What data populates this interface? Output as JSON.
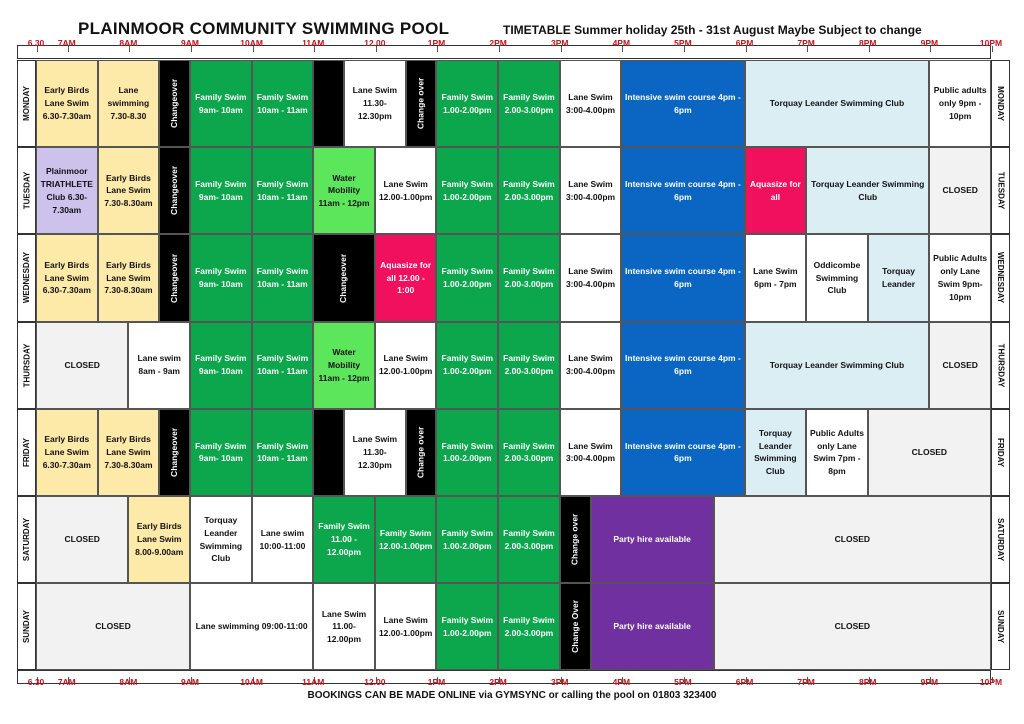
{
  "header": {
    "title": "PLAINMOOR COMMUNITY SWIMMING POOL",
    "subtitle": "TIMETABLE Summer holiday 25th - 31st  August  Maybe Subject to change"
  },
  "footer": "BOOKINGS CAN BE MADE ONLINE via GYMSYNC or calling the pool on 01803 323400",
  "time_labels": [
    {
      "t": 6.5,
      "label": "6.30"
    },
    {
      "t": 7,
      "label": "7AM"
    },
    {
      "t": 8,
      "label": "8AM"
    },
    {
      "t": 9,
      "label": "9AM"
    },
    {
      "t": 10,
      "label": "10AM"
    },
    {
      "t": 11,
      "label": "11AM"
    },
    {
      "t": 12,
      "label": "12.00"
    },
    {
      "t": 13,
      "label": "1PM"
    },
    {
      "t": 14,
      "label": "2PM"
    },
    {
      "t": 15,
      "label": "3PM"
    },
    {
      "t": 16,
      "label": "4PM"
    },
    {
      "t": 17,
      "label": "5PM"
    },
    {
      "t": 18,
      "label": "6PM"
    },
    {
      "t": 19,
      "label": "7PM"
    },
    {
      "t": 20,
      "label": "8PM"
    },
    {
      "t": 21,
      "label": "9PM"
    },
    {
      "t": 22,
      "label": "10PM"
    }
  ],
  "colors": {
    "yellow": "#fde9a8",
    "lavender": "#ccc2ec",
    "green": "#0ca74c",
    "black": "#000000",
    "white": "#ffffff",
    "blue": "#0b66c3",
    "lightblue": "#dbeef4",
    "lightgreen": "#5ce65c",
    "pink": "#f0105e",
    "purple": "#7030a0",
    "grey": "#f2f2f2"
  },
  "days": [
    {
      "name": "MONDAY",
      "sessions": [
        {
          "start": 6.5,
          "end": 7.5,
          "color": "yellow",
          "text": "Early Birds Lane Swim 6.30-7.30am"
        },
        {
          "start": 7.5,
          "end": 8.5,
          "color": "yellow",
          "text": "Lane swimming 7.30-8.30"
        },
        {
          "start": 8.5,
          "end": 9,
          "color": "black",
          "text": "Changeover",
          "vertical": true
        },
        {
          "start": 9,
          "end": 10,
          "color": "green",
          "text": "Family Swim 9am- 10am"
        },
        {
          "start": 10,
          "end": 11,
          "color": "green",
          "text": "Family Swim 10am - 11am"
        },
        {
          "start": 11,
          "end": 11.5,
          "color": "black",
          "text": ""
        },
        {
          "start": 11.5,
          "end": 12.5,
          "color": "white",
          "text": "Lane Swim 11.30-12.30pm"
        },
        {
          "start": 12.5,
          "end": 13,
          "color": "black",
          "text": "Change over",
          "vertical": true
        },
        {
          "start": 13,
          "end": 14,
          "color": "green",
          "text": "Family Swim 1.00-2.00pm"
        },
        {
          "start": 14,
          "end": 15,
          "color": "green",
          "text": "Family Swim 2.00-3.00pm"
        },
        {
          "start": 15,
          "end": 16,
          "color": "white",
          "text": "Lane Swim 3:00-4.00pm"
        },
        {
          "start": 16,
          "end": 18,
          "color": "blue",
          "text": "Intensive swim course 4pm - 6pm"
        },
        {
          "start": 18,
          "end": 21,
          "color": "lightblue",
          "text": "Torquay Leander Swimming Club"
        },
        {
          "start": 21,
          "end": 22,
          "color": "white",
          "text": "Public adults only 9pm - 10pm"
        }
      ]
    },
    {
      "name": "TUESDAY",
      "sessions": [
        {
          "start": 6.5,
          "end": 7.5,
          "color": "lavender",
          "text": "Plainmoor TRIATHLETE Club 6.30-7.30am"
        },
        {
          "start": 7.5,
          "end": 8.5,
          "color": "yellow",
          "text": "Early Birds Lane Swim 7.30-8.30am"
        },
        {
          "start": 8.5,
          "end": 9,
          "color": "black",
          "text": "Changeover",
          "vertical": true
        },
        {
          "start": 9,
          "end": 10,
          "color": "green",
          "text": "Family Swim 9am- 10am"
        },
        {
          "start": 10,
          "end": 11,
          "color": "green",
          "text": "Family Swim 10am - 11am"
        },
        {
          "start": 11,
          "end": 12,
          "color": "lightgreen",
          "text": "Water Mobility 11am - 12pm"
        },
        {
          "start": 12,
          "end": 13,
          "color": "white",
          "text": "Lane Swim 12.00-1.00pm"
        },
        {
          "start": 13,
          "end": 14,
          "color": "green",
          "text": "Family Swim 1.00-2.00pm"
        },
        {
          "start": 14,
          "end": 15,
          "color": "green",
          "text": "Family Swim 2.00-3.00pm"
        },
        {
          "start": 15,
          "end": 16,
          "color": "white",
          "text": "Lane Swim 3:00-4.00pm"
        },
        {
          "start": 16,
          "end": 18,
          "color": "blue",
          "text": "Intensive swim course 4pm - 6pm"
        },
        {
          "start": 18,
          "end": 19,
          "color": "pink",
          "text": "Aquasize for all"
        },
        {
          "start": 19,
          "end": 21,
          "color": "lightblue",
          "text": "Torquay Leander Swimming Club"
        },
        {
          "start": 21,
          "end": 22,
          "color": "grey",
          "text": "CLOSED"
        }
      ]
    },
    {
      "name": "WEDNESDAY",
      "sessions": [
        {
          "start": 6.5,
          "end": 7.5,
          "color": "yellow",
          "text": "Early Birds Lane Swim 6.30-7.30am"
        },
        {
          "start": 7.5,
          "end": 8.5,
          "color": "yellow",
          "text": "Early Birds Lane Swim 7.30-8.30am"
        },
        {
          "start": 8.5,
          "end": 9,
          "color": "black",
          "text": "Changeover",
          "vertical": true
        },
        {
          "start": 9,
          "end": 10,
          "color": "green",
          "text": "Family Swim 9am- 10am"
        },
        {
          "start": 10,
          "end": 11,
          "color": "green",
          "text": "Family Swim 10am - 11am"
        },
        {
          "start": 11,
          "end": 12,
          "color": "black",
          "text": "Changeover",
          "vertical": true
        },
        {
          "start": 12,
          "end": 13,
          "color": "pink",
          "text": "Aquasize for all  12.00 - 1:00"
        },
        {
          "start": 13,
          "end": 14,
          "color": "green",
          "text": "Family Swim 1.00-2.00pm"
        },
        {
          "start": 14,
          "end": 15,
          "color": "green",
          "text": "Family Swim 2.00-3.00pm"
        },
        {
          "start": 15,
          "end": 16,
          "color": "white",
          "text": "Lane Swim 3:00-4.00pm"
        },
        {
          "start": 16,
          "end": 18,
          "color": "blue",
          "text": "Intensive swim course 4pm - 6pm"
        },
        {
          "start": 18,
          "end": 19,
          "color": "white",
          "text": "Lane Swim 6pm - 7pm"
        },
        {
          "start": 19,
          "end": 20,
          "color": "white",
          "text": "Oddicombe Swimming Club"
        },
        {
          "start": 20,
          "end": 21,
          "color": "lightblue",
          "text": "Torquay Leander"
        },
        {
          "start": 21,
          "end": 22,
          "color": "white",
          "text": "Public Adults only Lane Swim 9pm-10pm"
        }
      ]
    },
    {
      "name": "THURSDAY",
      "sessions": [
        {
          "start": 6.5,
          "end": 8,
          "color": "grey",
          "text": "CLOSED"
        },
        {
          "start": 8,
          "end": 9,
          "color": "white",
          "text": "Lane swim 8am - 9am"
        },
        {
          "start": 9,
          "end": 10,
          "color": "green",
          "text": "Family Swim 9am- 10am"
        },
        {
          "start": 10,
          "end": 11,
          "color": "green",
          "text": "Family Swim 10am - 11am"
        },
        {
          "start": 11,
          "end": 12,
          "color": "lightgreen",
          "text": "Water Mobility 11am - 12pm"
        },
        {
          "start": 12,
          "end": 13,
          "color": "white",
          "text": "Lane Swim 12.00-1.00pm"
        },
        {
          "start": 13,
          "end": 14,
          "color": "green",
          "text": "Family Swim 1.00-2.00pm"
        },
        {
          "start": 14,
          "end": 15,
          "color": "green",
          "text": "Family Swim 2.00-3.00pm"
        },
        {
          "start": 15,
          "end": 16,
          "color": "white",
          "text": "Lane Swim 3:00-4.00pm"
        },
        {
          "start": 16,
          "end": 18,
          "color": "blue",
          "text": "Intensive swim course 4pm - 6pm"
        },
        {
          "start": 18,
          "end": 21,
          "color": "lightblue",
          "text": "Torquay Leander Swimming Club"
        },
        {
          "start": 21,
          "end": 22,
          "color": "grey",
          "text": "CLOSED"
        }
      ]
    },
    {
      "name": "FRIDAY",
      "sessions": [
        {
          "start": 6.5,
          "end": 7.5,
          "color": "yellow",
          "text": "Early Birds Lane Swim 6.30-7.30am"
        },
        {
          "start": 7.5,
          "end": 8.5,
          "color": "yellow",
          "text": "Early Birds Lane Swim 7.30-8.30am"
        },
        {
          "start": 8.5,
          "end": 9,
          "color": "black",
          "text": "Changeover",
          "vertical": true
        },
        {
          "start": 9,
          "end": 10,
          "color": "green",
          "text": "Family Swim 9am- 10am"
        },
        {
          "start": 10,
          "end": 11,
          "color": "green",
          "text": "Family Swim 10am - 11am"
        },
        {
          "start": 11,
          "end": 11.5,
          "color": "black",
          "text": ""
        },
        {
          "start": 11.5,
          "end": 12.5,
          "color": "white",
          "text": "Lane Swim 11.30-12.30pm"
        },
        {
          "start": 12.5,
          "end": 13,
          "color": "black",
          "text": "Change over",
          "vertical": true
        },
        {
          "start": 13,
          "end": 14,
          "color": "green",
          "text": "Family Swim 1.00-2.00pm"
        },
        {
          "start": 14,
          "end": 15,
          "color": "green",
          "text": "Family Swim 2.00-3.00pm"
        },
        {
          "start": 15,
          "end": 16,
          "color": "white",
          "text": "Lane Swim 3:00-4.00pm"
        },
        {
          "start": 16,
          "end": 18,
          "color": "blue",
          "text": "Intensive swim course 4pm - 6pm"
        },
        {
          "start": 18,
          "end": 19,
          "color": "lightblue",
          "text": "Torquay Leander Swimming Club"
        },
        {
          "start": 19,
          "end": 20,
          "color": "white",
          "text": "Public Adults only Lane Swim 7pm - 8pm"
        },
        {
          "start": 20,
          "end": 22,
          "color": "grey",
          "text": "CLOSED"
        }
      ]
    },
    {
      "name": "SATURDAY",
      "sessions": [
        {
          "start": 6.5,
          "end": 8,
          "color": "grey",
          "text": "CLOSED"
        },
        {
          "start": 8,
          "end": 9,
          "color": "yellow",
          "text": "Early Birds Lane Swim 8.00-9.00am"
        },
        {
          "start": 9,
          "end": 10,
          "color": "white",
          "text": "Torquay Leander Swimming Club"
        },
        {
          "start": 10,
          "end": 11,
          "color": "white",
          "text": "Lane swim 10:00-11:00"
        },
        {
          "start": 11,
          "end": 12,
          "color": "green",
          "text": "Family Swim 11.00 - 12.00pm"
        },
        {
          "start": 12,
          "end": 13,
          "color": "green",
          "text": "Family Swim 12.00-1.00pm"
        },
        {
          "start": 13,
          "end": 14,
          "color": "green",
          "text": "Family Swim 1.00-2.00pm"
        },
        {
          "start": 14,
          "end": 15,
          "color": "green",
          "text": "Family Swim 2.00-3.00pm"
        },
        {
          "start": 15,
          "end": 15.5,
          "color": "black",
          "text": "Change over",
          "vertical": true
        },
        {
          "start": 15.5,
          "end": 17.5,
          "color": "purple",
          "text": "Party hire available"
        },
        {
          "start": 17.5,
          "end": 22,
          "color": "grey",
          "text": "CLOSED"
        }
      ]
    },
    {
      "name": "SUNDAY",
      "sessions": [
        {
          "start": 6.5,
          "end": 9,
          "color": "grey",
          "text": "CLOSED"
        },
        {
          "start": 9,
          "end": 11,
          "color": "white",
          "text": "Lane swimming  09:00-11:00"
        },
        {
          "start": 11,
          "end": 12,
          "color": "white",
          "text": "Lane Swim 11.00-12.00pm"
        },
        {
          "start": 12,
          "end": 13,
          "color": "white",
          "text": "Lane Swim 12.00-1.00pm"
        },
        {
          "start": 13,
          "end": 14,
          "color": "green",
          "text": "Family Swim 1.00-2.00pm"
        },
        {
          "start": 14,
          "end": 15,
          "color": "green",
          "text": "Family Swim 2.00-3.00pm"
        },
        {
          "start": 15,
          "end": 15.5,
          "color": "black",
          "text": "Change Over",
          "vertical": true
        },
        {
          "start": 15.5,
          "end": 17.5,
          "color": "purple",
          "text": "Party hire available"
        },
        {
          "start": 17.5,
          "end": 22,
          "color": "grey",
          "text": "CLOSED"
        }
      ]
    }
  ]
}
